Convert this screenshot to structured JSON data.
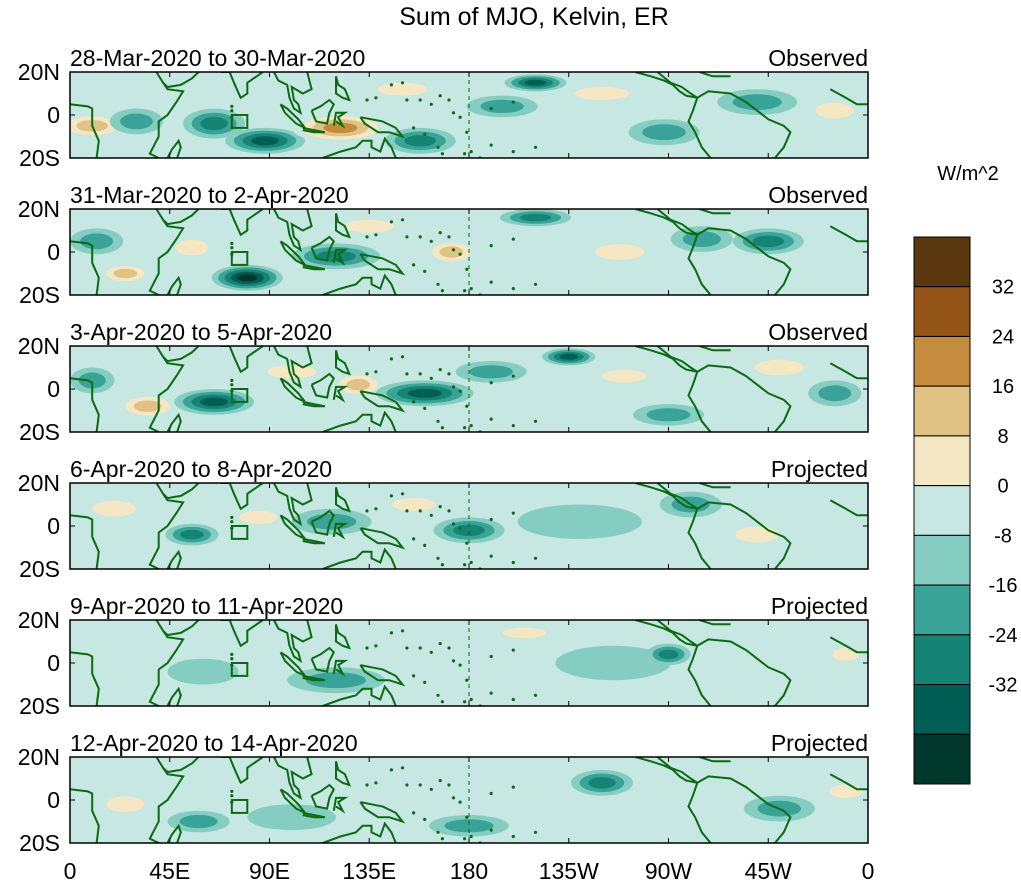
{
  "chart_data": {
    "type": "heatmap",
    "title": "Sum of MJO, Kelvin, ER",
    "units_label": "W/m^2",
    "x_ticks": [
      "0",
      "45E",
      "90E",
      "135E",
      "180",
      "135W",
      "90W",
      "45W",
      "0"
    ],
    "x_range": [
      0,
      360
    ],
    "y_ticks": [
      "20N",
      "0",
      "20S"
    ],
    "y_range": [
      -20,
      20
    ],
    "colorbar": {
      "levels": [
        -40,
        -32,
        -24,
        -16,
        -8,
        0,
        8,
        16,
        24,
        32,
        40
      ],
      "tick_labels": [
        "32",
        "24",
        "16",
        "8",
        "0",
        "-8",
        "-16",
        "-24",
        "-32"
      ],
      "colors": [
        "#00392b",
        "#005e55",
        "#168474",
        "#39a397",
        "#86cdc1",
        "#c6e7e2",
        "#f5e6c4",
        "#e0c285",
        "#c58b3e",
        "#955518",
        "#5a370e"
      ]
    },
    "panels": [
      {
        "dates": "28-Mar-2020 to 30-Mar-2020",
        "status": "Observed",
        "features": [
          {
            "lon": 10,
            "lat": -5,
            "value": 20,
            "w": 16,
            "h": 6
          },
          {
            "lon": 30,
            "lat": -3,
            "value": -12,
            "w": 12,
            "h": 6
          },
          {
            "lon": 65,
            "lat": -4,
            "value": -24,
            "w": 14,
            "h": 7
          },
          {
            "lon": 88,
            "lat": -12,
            "value": -32,
            "w": 18,
            "h": 6
          },
          {
            "lon": 122,
            "lat": -6,
            "value": 26,
            "w": 22,
            "h": 7
          },
          {
            "lon": 158,
            "lat": -12,
            "value": -20,
            "w": 16,
            "h": 6
          },
          {
            "lon": 150,
            "lat": 12,
            "value": 14,
            "w": 18,
            "h": 5
          },
          {
            "lon": 210,
            "lat": 15,
            "value": -26,
            "w": 14,
            "h": 4
          },
          {
            "lon": 195,
            "lat": 4,
            "value": -16,
            "w": 16,
            "h": 5
          },
          {
            "lon": 240,
            "lat": 10,
            "value": 12,
            "w": 20,
            "h": 5
          },
          {
            "lon": 268,
            "lat": -8,
            "value": -14,
            "w": 16,
            "h": 6
          },
          {
            "lon": 310,
            "lat": 6,
            "value": -12,
            "w": 18,
            "h": 6
          },
          {
            "lon": 345,
            "lat": 2,
            "value": 10,
            "w": 14,
            "h": 6
          }
        ]
      },
      {
        "dates": "31-Mar-2020 to 2-Apr-2020",
        "status": "Observed",
        "features": [
          {
            "lon": 12,
            "lat": 5,
            "value": -12,
            "w": 12,
            "h": 6
          },
          {
            "lon": 25,
            "lat": -10,
            "value": 24,
            "w": 12,
            "h": 5
          },
          {
            "lon": 55,
            "lat": 2,
            "value": 16,
            "w": 12,
            "h": 6
          },
          {
            "lon": 80,
            "lat": -12,
            "value": -34,
            "w": 16,
            "h": 6
          },
          {
            "lon": 120,
            "lat": -2,
            "value": -20,
            "w": 20,
            "h": 6
          },
          {
            "lon": 135,
            "lat": 12,
            "value": 12,
            "w": 18,
            "h": 5
          },
          {
            "lon": 172,
            "lat": 0,
            "value": 18,
            "w": 12,
            "h": 6
          },
          {
            "lon": 210,
            "lat": 16,
            "value": -24,
            "w": 16,
            "h": 4
          },
          {
            "lon": 248,
            "lat": 0,
            "value": 14,
            "w": 18,
            "h": 6
          },
          {
            "lon": 285,
            "lat": 6,
            "value": -14,
            "w": 14,
            "h": 6
          },
          {
            "lon": 315,
            "lat": 5,
            "value": -20,
            "w": 16,
            "h": 6
          },
          {
            "lon": 230,
            "lat": -14,
            "value": 8,
            "w": 22,
            "h": 5
          }
        ]
      },
      {
        "dates": "3-Apr-2020 to 5-Apr-2020",
        "status": "Observed",
        "features": [
          {
            "lon": 10,
            "lat": 4,
            "value": -14,
            "w": 10,
            "h": 6
          },
          {
            "lon": 35,
            "lat": -8,
            "value": 20,
            "w": 14,
            "h": 6
          },
          {
            "lon": 65,
            "lat": -6,
            "value": -30,
            "w": 18,
            "h": 6
          },
          {
            "lon": 100,
            "lat": 8,
            "value": 10,
            "w": 18,
            "h": 5
          },
          {
            "lon": 130,
            "lat": 2,
            "value": 20,
            "w": 12,
            "h": 6
          },
          {
            "lon": 160,
            "lat": -2,
            "value": -26,
            "w": 22,
            "h": 6
          },
          {
            "lon": 190,
            "lat": 8,
            "value": -16,
            "w": 16,
            "h": 5
          },
          {
            "lon": 225,
            "lat": 15,
            "value": -28,
            "w": 12,
            "h": 4
          },
          {
            "lon": 250,
            "lat": 6,
            "value": 14,
            "w": 16,
            "h": 5
          },
          {
            "lon": 270,
            "lat": -12,
            "value": -16,
            "w": 16,
            "h": 5
          },
          {
            "lon": 320,
            "lat": 10,
            "value": 10,
            "w": 18,
            "h": 6
          },
          {
            "lon": 345,
            "lat": -2,
            "value": -12,
            "w": 12,
            "h": 6
          }
        ]
      },
      {
        "dates": "6-Apr-2020 to 8-Apr-2020",
        "status": "Projected",
        "features": [
          {
            "lon": 20,
            "lat": 8,
            "value": 10,
            "w": 16,
            "h": 6
          },
          {
            "lon": 55,
            "lat": -4,
            "value": -20,
            "w": 12,
            "h": 5
          },
          {
            "lon": 85,
            "lat": 4,
            "value": 10,
            "w": 14,
            "h": 5
          },
          {
            "lon": 118,
            "lat": 2,
            "value": -14,
            "w": 18,
            "h": 6
          },
          {
            "lon": 155,
            "lat": 10,
            "value": 12,
            "w": 16,
            "h": 5
          },
          {
            "lon": 180,
            "lat": -2,
            "value": -18,
            "w": 16,
            "h": 6
          },
          {
            "lon": 230,
            "lat": 2,
            "value": -8,
            "w": 28,
            "h": 8
          },
          {
            "lon": 280,
            "lat": 10,
            "value": -12,
            "w": 14,
            "h": 6
          },
          {
            "lon": 310,
            "lat": -4,
            "value": 12,
            "w": 16,
            "h": 6
          },
          {
            "lon": 345,
            "lat": 8,
            "value": 8,
            "w": 14,
            "h": 6
          }
        ]
      },
      {
        "dates": "9-Apr-2020 to 11-Apr-2020",
        "status": "Projected",
        "features": [
          {
            "lon": 20,
            "lat": 2,
            "value": 8,
            "w": 16,
            "h": 6
          },
          {
            "lon": 60,
            "lat": -4,
            "value": -8,
            "w": 16,
            "h": 6
          },
          {
            "lon": 120,
            "lat": -8,
            "value": -10,
            "w": 22,
            "h": 6
          },
          {
            "lon": 160,
            "lat": 2,
            "value": 6,
            "w": 18,
            "h": 6
          },
          {
            "lon": 205,
            "lat": 14,
            "value": 12,
            "w": 16,
            "h": 4
          },
          {
            "lon": 245,
            "lat": 0,
            "value": -8,
            "w": 26,
            "h": 8
          },
          {
            "lon": 270,
            "lat": 4,
            "value": -18,
            "w": 10,
            "h": 5
          },
          {
            "lon": 325,
            "lat": 0,
            "value": 8,
            "w": 18,
            "h": 6
          },
          {
            "lon": 350,
            "lat": 4,
            "value": 14,
            "w": 10,
            "h": 5
          }
        ]
      },
      {
        "dates": "12-Apr-2020 to 14-Apr-2020",
        "status": "Projected",
        "features": [
          {
            "lon": 25,
            "lat": -2,
            "value": 10,
            "w": 14,
            "h": 6
          },
          {
            "lon": 58,
            "lat": -10,
            "value": -10,
            "w": 14,
            "h": 5
          },
          {
            "lon": 100,
            "lat": -8,
            "value": -8,
            "w": 20,
            "h": 6
          },
          {
            "lon": 148,
            "lat": 12,
            "value": 8,
            "w": 16,
            "h": 5
          },
          {
            "lon": 180,
            "lat": -12,
            "value": -12,
            "w": 18,
            "h": 5
          },
          {
            "lon": 240,
            "lat": 8,
            "value": -18,
            "w": 14,
            "h": 6
          },
          {
            "lon": 270,
            "lat": -6,
            "value": 8,
            "w": 18,
            "h": 6
          },
          {
            "lon": 320,
            "lat": -4,
            "value": -10,
            "w": 16,
            "h": 6
          },
          {
            "lon": 350,
            "lat": 4,
            "value": 10,
            "w": 12,
            "h": 5
          }
        ]
      }
    ]
  }
}
